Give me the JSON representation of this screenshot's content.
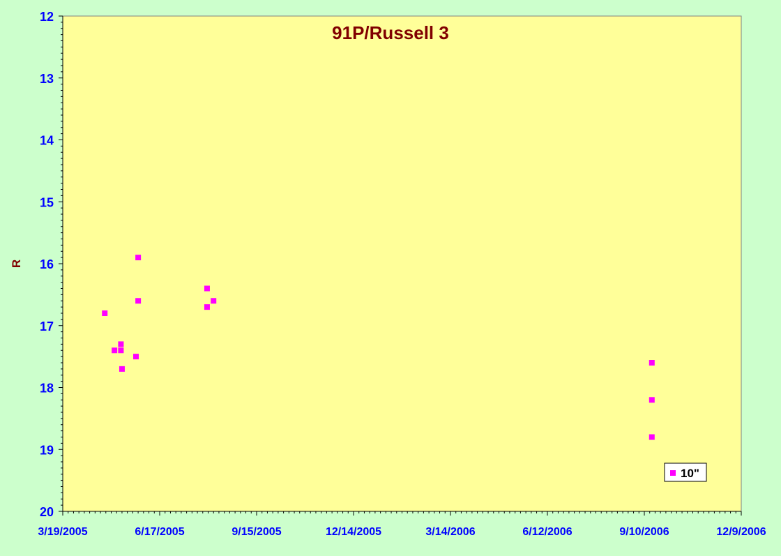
{
  "colors": {
    "background": "#ccffcc",
    "plot_area": "#ffff99",
    "axis_text": "#0000ff",
    "title_text": "#800000",
    "marker": "#ff00ff"
  },
  "chart_data": {
    "type": "scatter",
    "title": "91P/Russell 3",
    "xlabel": "",
    "ylabel": "R",
    "x_tick_labels": [
      "3/19/2005",
      "6/17/2005",
      "9/15/2005",
      "12/14/2005",
      "3/14/2006",
      "6/12/2006",
      "9/10/2006",
      "12/9/2006"
    ],
    "xlim": [
      "2005-03-19",
      "2006-12-09"
    ],
    "y_tick_labels": [
      "12",
      "13",
      "14",
      "15",
      "16",
      "17",
      "18",
      "19",
      "20"
    ],
    "ylim": [
      12,
      20
    ],
    "y_inverted": true,
    "grid": false,
    "legend_position": "bottom-right",
    "series": [
      {
        "name": "10\"",
        "marker": "square",
        "color": "#ff00ff",
        "points": [
          {
            "x": "2005-04-27",
            "y": 16.8
          },
          {
            "x": "2005-05-06",
            "y": 17.4
          },
          {
            "x": "2005-05-12",
            "y": 17.4
          },
          {
            "x": "2005-05-12",
            "y": 17.3
          },
          {
            "x": "2005-05-13",
            "y": 17.7
          },
          {
            "x": "2005-05-26",
            "y": 17.5
          },
          {
            "x": "2005-05-28",
            "y": 15.9
          },
          {
            "x": "2005-05-28",
            "y": 16.6
          },
          {
            "x": "2005-07-31",
            "y": 16.4
          },
          {
            "x": "2005-07-31",
            "y": 16.7
          },
          {
            "x": "2005-08-06",
            "y": 16.6
          },
          {
            "x": "2006-09-17",
            "y": 17.6
          },
          {
            "x": "2006-09-17",
            "y": 18.2
          },
          {
            "x": "2006-09-17",
            "y": 18.8
          }
        ]
      }
    ]
  }
}
